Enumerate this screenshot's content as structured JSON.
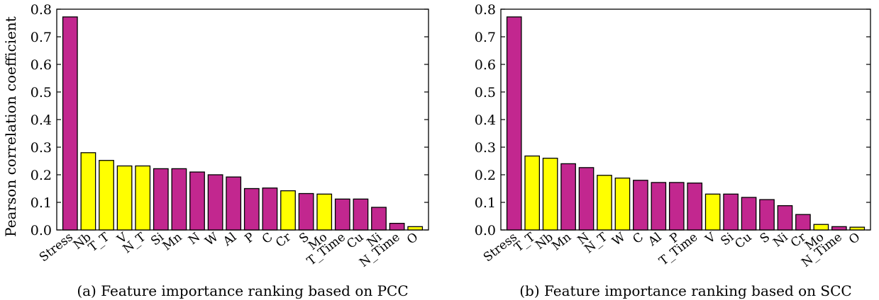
{
  "colors": {
    "magenta": "#c2278f",
    "yellow": "#ffff00",
    "edge": "#000000"
  },
  "chart_data": [
    {
      "type": "bar",
      "caption": "(a) Feature importance ranking based on PCC",
      "ylabel": "Pearson correlation coefficient",
      "ylim": [
        0,
        0.8
      ],
      "yticks": [
        "0.0",
        "0.1",
        "0.2",
        "0.3",
        "0.4",
        "0.5",
        "0.6",
        "0.7",
        "0.8"
      ],
      "categories": [
        "Stress",
        "Nb",
        "T_T",
        "V",
        "N_T",
        "Si",
        "Mn",
        "N",
        "W",
        "Al",
        "P",
        "C",
        "Cr",
        "S",
        "Mo",
        "T_Time",
        "Cu",
        "Ni",
        "N_Time",
        "O"
      ],
      "values": [
        0.772,
        0.28,
        0.252,
        0.232,
        0.232,
        0.222,
        0.222,
        0.21,
        0.2,
        0.192,
        0.15,
        0.152,
        0.142,
        0.132,
        0.13,
        0.112,
        0.112,
        0.082,
        0.024,
        0.012
      ],
      "bar_colors": [
        "magenta",
        "yellow",
        "yellow",
        "yellow",
        "yellow",
        "magenta",
        "magenta",
        "magenta",
        "magenta",
        "magenta",
        "magenta",
        "magenta",
        "yellow",
        "magenta",
        "yellow",
        "magenta",
        "magenta",
        "magenta",
        "magenta",
        "yellow"
      ]
    },
    {
      "type": "bar",
      "caption": "(b) Feature importance ranking based on SCC",
      "ylabel": "",
      "ylim": [
        0,
        0.8
      ],
      "yticks": [
        "0.0",
        "0.1",
        "0.2",
        "0.3",
        "0.4",
        "0.5",
        "0.6",
        "0.7",
        "0.8"
      ],
      "categories": [
        "Stress",
        "T_T",
        "Nb",
        "Mn",
        "N",
        "N_T",
        "W",
        "C",
        "Al",
        "P",
        "T_Time",
        "V",
        "Si",
        "Cu",
        "S",
        "Ni",
        "Cr",
        "Mo",
        "N_Time",
        "O"
      ],
      "values": [
        0.772,
        0.268,
        0.26,
        0.24,
        0.226,
        0.198,
        0.188,
        0.18,
        0.172,
        0.172,
        0.17,
        0.13,
        0.13,
        0.118,
        0.11,
        0.088,
        0.056,
        0.02,
        0.012,
        0.01
      ],
      "bar_colors": [
        "magenta",
        "yellow",
        "yellow",
        "magenta",
        "magenta",
        "yellow",
        "yellow",
        "magenta",
        "magenta",
        "magenta",
        "magenta",
        "yellow",
        "magenta",
        "magenta",
        "magenta",
        "magenta",
        "magenta",
        "yellow",
        "magenta",
        "yellow"
      ]
    }
  ]
}
